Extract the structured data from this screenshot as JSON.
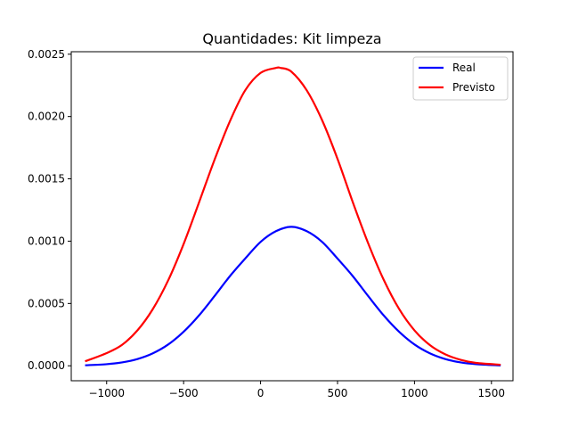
{
  "chart_data": {
    "type": "line",
    "title": "Quantidades: Kit limpeza",
    "xlabel": "",
    "ylabel": "",
    "xlim": [
      -1230,
      1640
    ],
    "ylim": [
      -0.00012,
      0.00252
    ],
    "xticks": [
      -1000,
      -500,
      0,
      500,
      1000,
      1500
    ],
    "xtick_labels": [
      "−1000",
      "−500",
      "0",
      "500",
      "1000",
      "1500"
    ],
    "yticks": [
      0,
      0.0005,
      0.001,
      0.0015,
      0.002,
      0.0025
    ],
    "ytick_labels": [
      "0.0000",
      "0.0005",
      "0.0010",
      "0.0015",
      "0.0020",
      "0.0025"
    ],
    "grid": false,
    "legend": {
      "placement": "top-right"
    },
    "series": [
      {
        "name": "Real",
        "color": "#0000ff",
        "x": [
          -1140,
          -1000,
          -900,
          -800,
          -700,
          -600,
          -500,
          -400,
          -300,
          -200,
          -100,
          0,
          100,
          200,
          300,
          400,
          500,
          600,
          700,
          800,
          900,
          1000,
          1100,
          1200,
          1300,
          1400,
          1560
        ],
        "y": [
          3.9e-06,
          1.3e-05,
          2.7e-05,
          5.4e-05,
          0.0001,
          0.000171,
          0.000273,
          0.000404,
          0.000558,
          0.000718,
          0.00086,
          0.000994,
          0.00108,
          0.001115,
          0.00108,
          0.000994,
          0.00086,
          0.000718,
          0.000558,
          0.000404,
          0.000273,
          0.000171,
          0.0001,
          5.4e-05,
          2.7e-05,
          1.3e-05,
          2.5e-06
        ]
      },
      {
        "name": "Previsto",
        "color": "#ff0000",
        "x": [
          -1140,
          -1000,
          -900,
          -800,
          -700,
          -600,
          -500,
          -400,
          -300,
          -200,
          -100,
          0,
          100,
          130,
          200,
          300,
          400,
          500,
          600,
          700,
          800,
          900,
          1000,
          1100,
          1200,
          1300,
          1400,
          1560
        ],
        "y": [
          3.6e-05,
          0.000102,
          0.000168,
          0.000284,
          0.000455,
          0.000686,
          0.000977,
          0.00131,
          0.00165,
          0.00196,
          0.00221,
          0.00235,
          0.00239,
          0.00239,
          0.00236,
          0.00221,
          0.00197,
          0.00166,
          0.00131,
          0.00098,
          0.00069,
          0.000456,
          0.000284,
          0.000166,
          9.2e-05,
          4.8e-05,
          2.3e-05,
          8.5e-06
        ]
      }
    ]
  }
}
